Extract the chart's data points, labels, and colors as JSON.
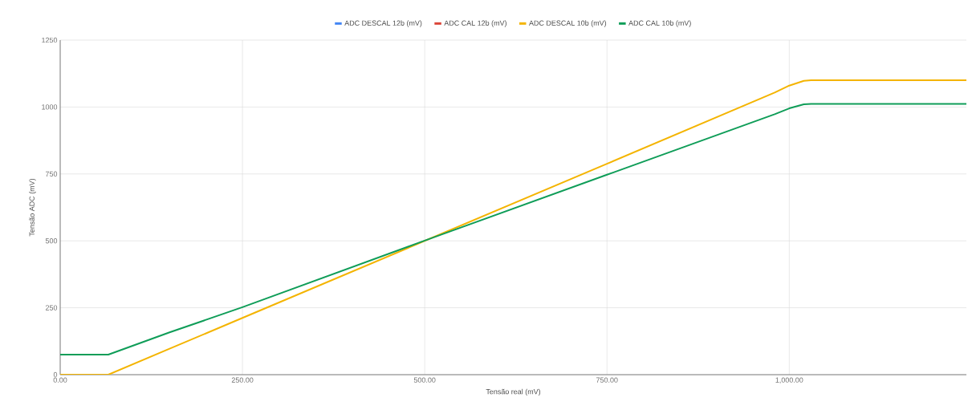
{
  "chart_data": {
    "type": "line",
    "xlabel": "Tensão real (mV)",
    "ylabel": "Tensão ADC (mV)",
    "x": [
      0,
      33,
      66,
      150,
      250,
      500,
      750,
      980,
      1000,
      1020,
      1030,
      1243
    ],
    "series": [
      {
        "name": "ADC DESCAL 12b (mV)",
        "color": "#4285f4",
        "values": [
          null,
          null,
          null,
          null,
          null,
          null,
          null,
          null,
          null,
          null,
          null,
          null
        ]
      },
      {
        "name": "ADC CAL 12b (mV)",
        "color": "#db4437",
        "values": [
          null,
          null,
          null,
          null,
          null,
          null,
          null,
          null,
          null,
          null,
          null,
          null
        ]
      },
      {
        "name": "ADC DESCAL 10b (mV)",
        "color": "#f4b400",
        "values": [
          0,
          0,
          0,
          97,
          212,
          500,
          788,
          1054,
          1080,
          1098,
          1100,
          1100
        ]
      },
      {
        "name": "ADC CAL 10b (mV)",
        "color": "#0f9d58",
        "values": [
          75,
          75,
          75,
          158,
          252,
          501,
          747,
          973,
          995,
          1010,
          1012,
          1012
        ]
      }
    ],
    "xlim": [
      0,
      1243
    ],
    "ylim": [
      0,
      1250
    ],
    "xticks": [
      {
        "value": 0,
        "label": "0.00"
      },
      {
        "value": 250,
        "label": "250.00"
      },
      {
        "value": 500,
        "label": "500.00"
      },
      {
        "value": 750,
        "label": "750.00"
      },
      {
        "value": 1000,
        "label": "1,000.00"
      }
    ],
    "yticks": [
      0,
      250,
      500,
      750,
      1000,
      1250
    ],
    "grid": true,
    "legend": "top",
    "marker": "none",
    "line_style": "solid"
  }
}
